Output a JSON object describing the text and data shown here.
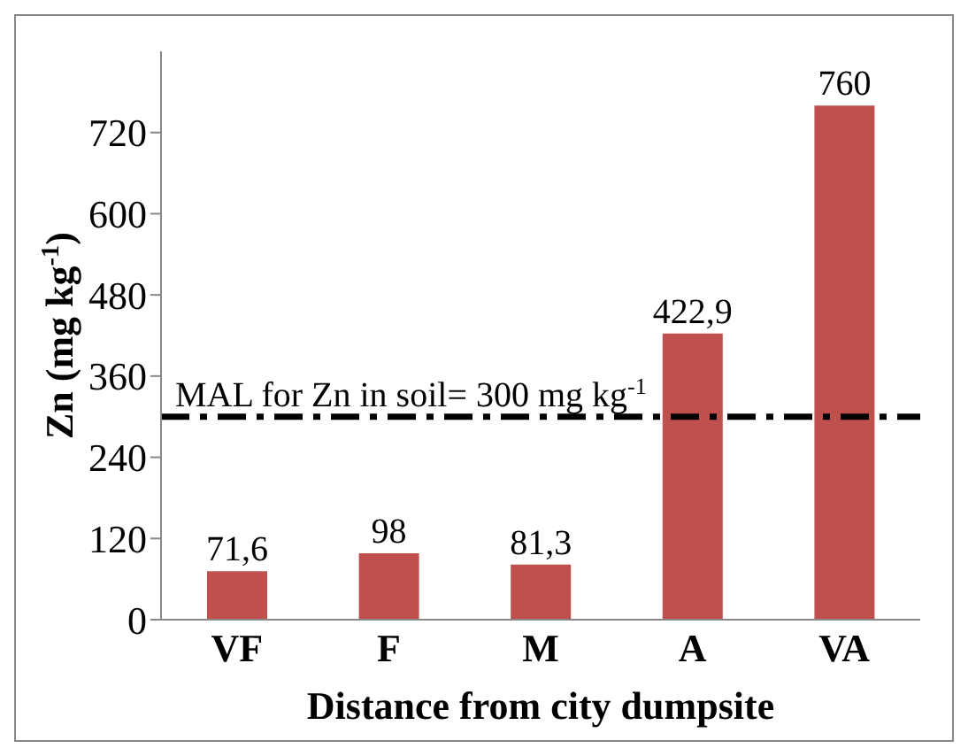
{
  "chart_data": {
    "type": "bar",
    "categories": [
      "VF",
      "F",
      "M",
      "A",
      "VA"
    ],
    "values": [
      71.6,
      98,
      81.3,
      422.9,
      760
    ],
    "value_labels": [
      "71,6",
      "98",
      "81,3",
      "422,9",
      "760"
    ],
    "color": "#c0504d",
    "ylim": [
      0,
      840
    ],
    "yticks": [
      0,
      120,
      240,
      360,
      480,
      600,
      720
    ],
    "xlabel": "Distance from city dumpsite",
    "ylabel": "Zn (mg kg$^{-1}$)",
    "ref_lines": [
      {
        "axis": "y",
        "value": 300,
        "label": "MAL for Zn in soil= 300 mg kg$^{-1}$",
        "color": "#000000",
        "line_style": "dashdot"
      }
    ],
    "grid": false
  }
}
